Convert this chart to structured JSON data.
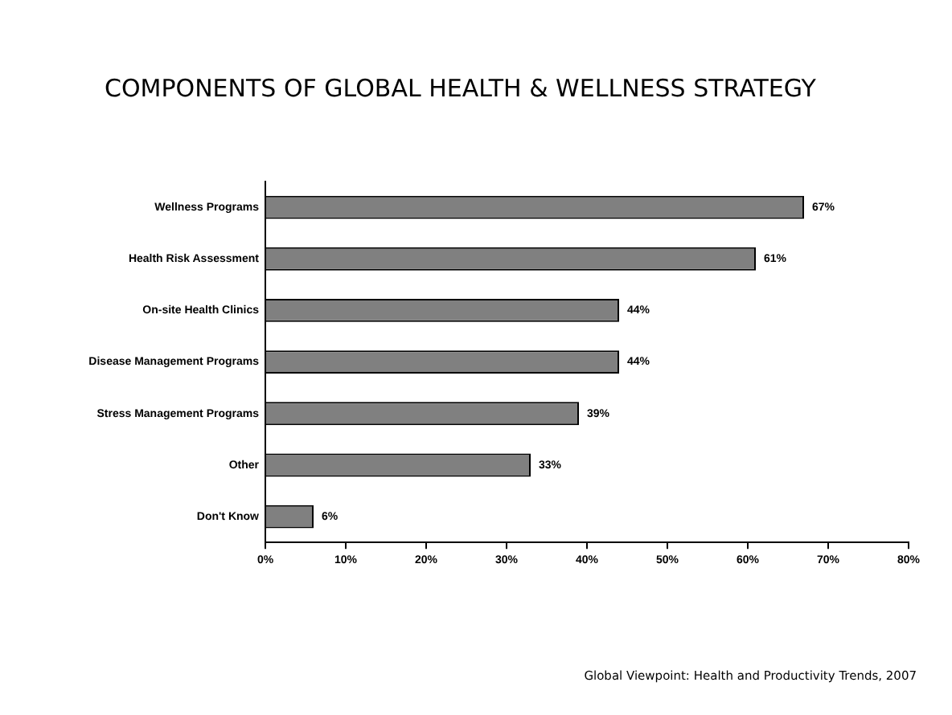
{
  "chart_data": {
    "type": "bar",
    "orientation": "horizontal",
    "title": "COMPONENTS OF GLOBAL HEALTH & WELLNESS STRATEGY",
    "categories": [
      "Wellness Programs",
      "Health Risk Assessment",
      "On-site Health Clinics",
      "Disease Management Programs",
      "Stress Management Programs",
      "Other",
      "Don't Know"
    ],
    "values": [
      67,
      61,
      44,
      44,
      39,
      33,
      6
    ],
    "value_labels": [
      "67%",
      "61%",
      "44%",
      "44%",
      "39%",
      "33%",
      "6%"
    ],
    "color": "#808080",
    "xlim": [
      0,
      80
    ],
    "xticks": [
      {
        "value": 0,
        "label": "0%"
      },
      {
        "value": 10,
        "label": "10%"
      },
      {
        "value": 20,
        "label": "20%"
      },
      {
        "value": 30,
        "label": "30%"
      },
      {
        "value": 40,
        "label": "40%"
      },
      {
        "value": 50,
        "label": "50%"
      },
      {
        "value": 60,
        "label": "60%"
      },
      {
        "value": 70,
        "label": "70%"
      },
      {
        "value": 80,
        "label": "80%"
      }
    ],
    "grid": false,
    "legend": false,
    "annotations": [
      "Global Viewpoint: Health and Productivity Trends, 2007"
    ]
  }
}
